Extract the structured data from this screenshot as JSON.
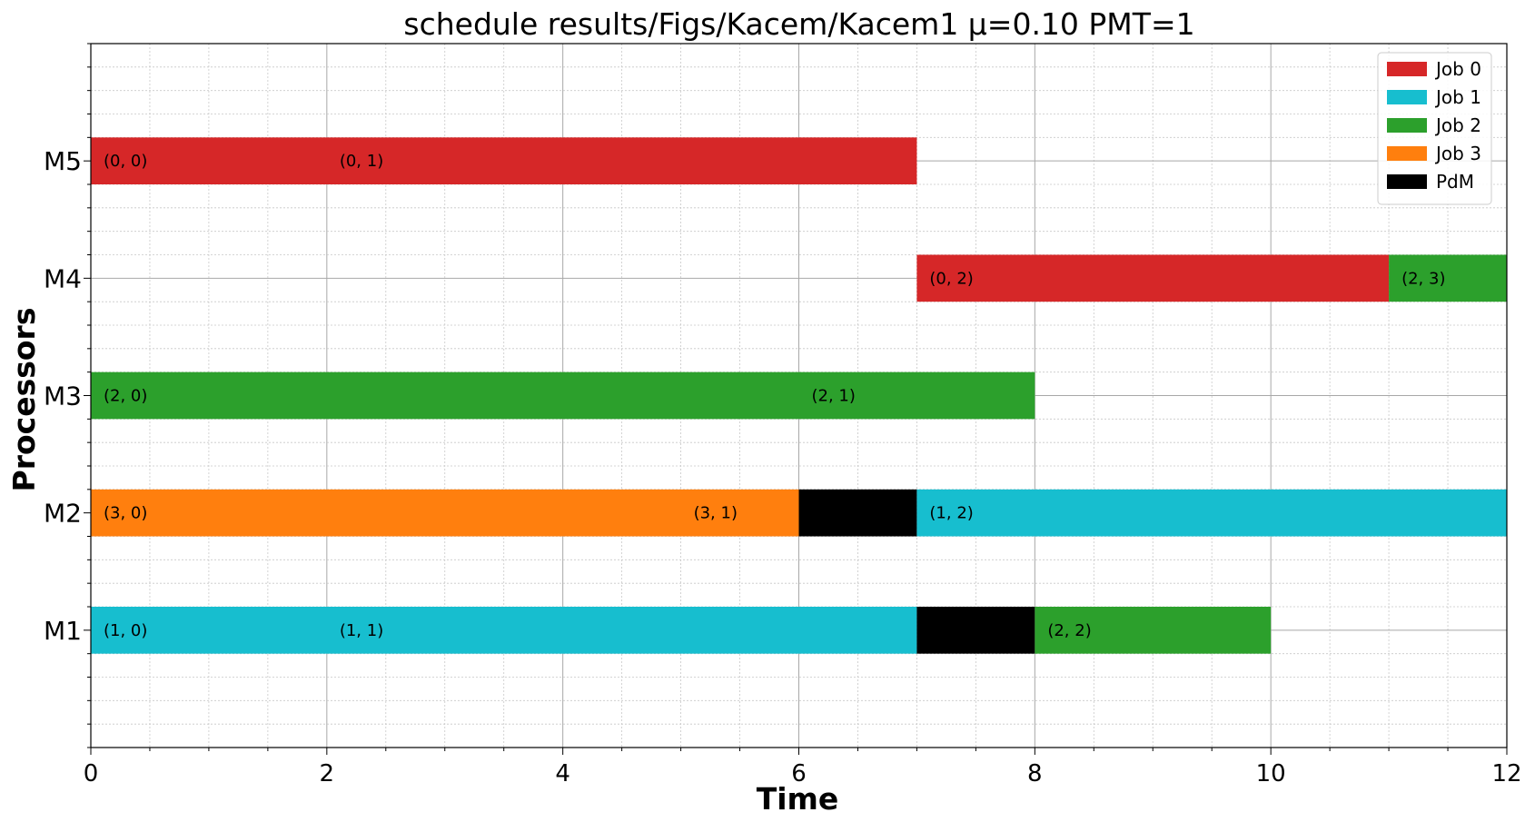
{
  "chart_data": {
    "type": "gantt",
    "title": "schedule results/Figs/Kacem/Kacem1 μ=0.10 PMT=1",
    "xlabel": "Time",
    "ylabel": "Processors",
    "xlim": [
      0,
      12
    ],
    "xticks": [
      0,
      2,
      4,
      6,
      8,
      10,
      12
    ],
    "processors": [
      "M1",
      "M2",
      "M3",
      "M4",
      "M5"
    ],
    "grid": "major and minor",
    "legend_position": "top-right",
    "legend": [
      {
        "name": "Job 0",
        "color": "#d62728"
      },
      {
        "name": "Job 1",
        "color": "#17becf"
      },
      {
        "name": "Job 2",
        "color": "#2ca02c"
      },
      {
        "name": "Job 3",
        "color": "#ff7f0e"
      },
      {
        "name": "PdM",
        "color": "#000000"
      }
    ],
    "bars": [
      {
        "processor": "M5",
        "start": 0,
        "end": 7,
        "color": "#d62728"
      },
      {
        "processor": "M4",
        "start": 7,
        "end": 11,
        "color": "#d62728"
      },
      {
        "processor": "M4",
        "start": 11,
        "end": 12,
        "color": "#2ca02c"
      },
      {
        "processor": "M3",
        "start": 0,
        "end": 8,
        "color": "#2ca02c"
      },
      {
        "processor": "M2",
        "start": 0,
        "end": 6,
        "color": "#ff7f0e"
      },
      {
        "processor": "M2",
        "start": 6,
        "end": 7,
        "color": "#000000"
      },
      {
        "processor": "M2",
        "start": 7,
        "end": 12,
        "color": "#17becf"
      },
      {
        "processor": "M1",
        "start": 0,
        "end": 7,
        "color": "#17becf"
      },
      {
        "processor": "M1",
        "start": 7,
        "end": 8,
        "color": "#000000"
      },
      {
        "processor": "M1",
        "start": 8,
        "end": 10,
        "color": "#2ca02c"
      }
    ],
    "operation_labels": [
      {
        "processor": "M5",
        "x": 0,
        "text": "(0, 0)"
      },
      {
        "processor": "M5",
        "x": 2,
        "text": "(0, 1)"
      },
      {
        "processor": "M4",
        "x": 7,
        "text": "(0, 2)"
      },
      {
        "processor": "M4",
        "x": 11,
        "text": "(2, 3)"
      },
      {
        "processor": "M3",
        "x": 0,
        "text": "(2, 0)"
      },
      {
        "processor": "M3",
        "x": 6,
        "text": "(2, 1)"
      },
      {
        "processor": "M2",
        "x": 0,
        "text": "(3, 0)"
      },
      {
        "processor": "M2",
        "x": 5,
        "text": "(3, 1)"
      },
      {
        "processor": "M2",
        "x": 7,
        "text": "(1, 2)"
      },
      {
        "processor": "M1",
        "x": 0,
        "text": "(1, 0)"
      },
      {
        "processor": "M1",
        "x": 2,
        "text": "(1, 1)"
      },
      {
        "processor": "M1",
        "x": 8,
        "text": "(2, 2)"
      }
    ]
  }
}
